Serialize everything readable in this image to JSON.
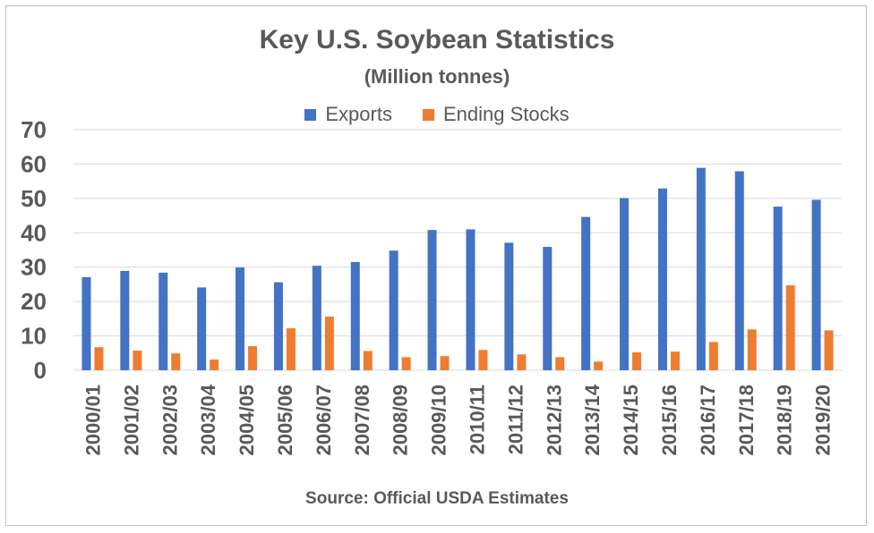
{
  "chart_data": {
    "type": "bar",
    "title": "Key U.S. Soybean Statistics",
    "subtitle": "(Million tonnes)",
    "source": "Source: Official USDA Estimates",
    "categories": [
      "2000/01",
      "2001/02",
      "2002/03",
      "2003/04",
      "2004/05",
      "2005/06",
      "2006/07",
      "2007/08",
      "2008/09",
      "2009/10",
      "2010/11",
      "2011/12",
      "2012/13",
      "2013/14",
      "2014/15",
      "2015/16",
      "2016/17",
      "2017/18",
      "2018/19",
      "2019/20"
    ],
    "series": [
      {
        "name": "Exports",
        "color": "#4472c4",
        "values": [
          27.1,
          28.9,
          28.4,
          24.1,
          29.9,
          25.6,
          30.4,
          31.5,
          34.8,
          40.8,
          41.0,
          37.1,
          35.9,
          44.6,
          50.1,
          52.9,
          58.9,
          57.9,
          47.6,
          49.6
        ]
      },
      {
        "name": "Ending Stocks",
        "color": "#ed7d31",
        "values": [
          6.7,
          5.7,
          4.9,
          3.1,
          7.0,
          12.2,
          15.6,
          5.6,
          3.8,
          4.1,
          5.9,
          4.6,
          3.8,
          2.5,
          5.2,
          5.4,
          8.2,
          11.9,
          24.7,
          11.6
        ]
      }
    ],
    "ylim": [
      0,
      70
    ],
    "yticks": [
      0,
      10,
      20,
      30,
      40,
      50,
      60,
      70
    ],
    "grid": true,
    "legend_position": "top"
  }
}
